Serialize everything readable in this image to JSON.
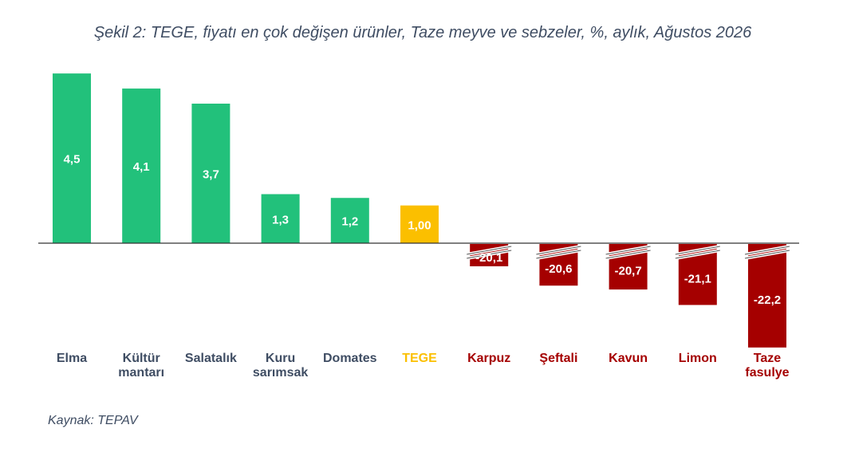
{
  "title": "Şekil 2: TEGE, fiyatı en çok değişen ürünler, Taze meyve ve sebzeler, %, aylık, Ağustos 2026",
  "source": "Kaynak: TEPAV",
  "colors": {
    "positive": "#22c17b",
    "highlight": "#fbbf00",
    "negative": "#a50000",
    "text": "#3f4d63",
    "axis": "#333333"
  },
  "chart_data": {
    "type": "bar",
    "axis_break": true,
    "categories": [
      [
        "Elma"
      ],
      [
        "Kültür",
        "mantarı"
      ],
      [
        "Salatalık"
      ],
      [
        "Kuru",
        "sarımsak"
      ],
      [
        "Domates"
      ],
      [
        "TEGE"
      ],
      [
        "Karpuz"
      ],
      [
        "Şeftali"
      ],
      [
        "Kavun"
      ],
      [
        "Limon"
      ],
      [
        "Taze",
        "fasulye"
      ]
    ],
    "values": [
      4.5,
      4.1,
      3.7,
      1.3,
      1.2,
      1.0,
      -20.1,
      -20.6,
      -20.7,
      -21.1,
      -22.2
    ],
    "value_labels": [
      "4,5",
      "4,1",
      "3,7",
      "1,3",
      "1,2",
      "1,00",
      "-20,1",
      "-20,6",
      "-20,7",
      "-21,1",
      "-22,2"
    ],
    "groups": [
      "positive",
      "positive",
      "positive",
      "positive",
      "positive",
      "highlight",
      "negative",
      "negative",
      "negative",
      "negative",
      "negative"
    ]
  }
}
